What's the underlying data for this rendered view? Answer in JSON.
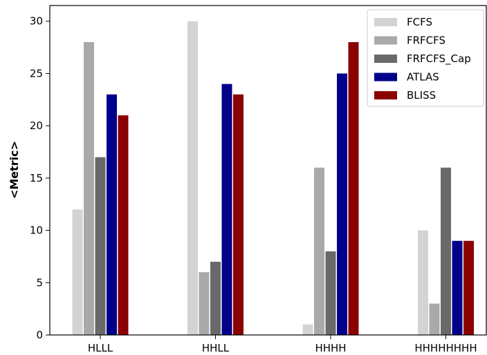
{
  "chart_data": {
    "type": "bar",
    "title": "",
    "xlabel": "",
    "ylabel": "<Metric>",
    "ylim": [
      0,
      31.5
    ],
    "yticks": [
      0,
      5,
      10,
      15,
      20,
      25,
      30
    ],
    "grid": false,
    "legend_position": "top-right",
    "categories": [
      "HLLL",
      "HHLL",
      "HHHH",
      "HHHHHHHH"
    ],
    "series": [
      {
        "name": "FCFS",
        "color": "#d3d3d3",
        "values": [
          12,
          30,
          1,
          10
        ]
      },
      {
        "name": "FRFCFS",
        "color": "#a9a9a9",
        "values": [
          28,
          6,
          16,
          3
        ]
      },
      {
        "name": "FRFCFS_Cap",
        "color": "#696969",
        "values": [
          17,
          7,
          8,
          16
        ]
      },
      {
        "name": "ATLAS",
        "color": "#00008b",
        "values": [
          23,
          24,
          25,
          9
        ]
      },
      {
        "name": "BLISS",
        "color": "#8b0000",
        "values": [
          21,
          23,
          28,
          9
        ]
      }
    ]
  }
}
